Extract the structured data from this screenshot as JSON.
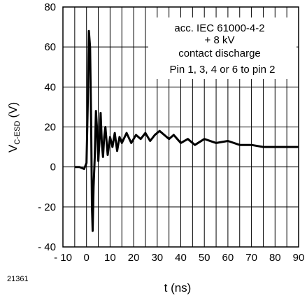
{
  "figure_id": "21361",
  "chart_data": {
    "type": "line",
    "xlabel": "t (ns)",
    "ylabel_main": "V",
    "ylabel_sub": "C-ESD",
    "ylabel_unit": "(V)",
    "xlim": [
      -10,
      90
    ],
    "ylim": [
      -40,
      80
    ],
    "x_ticks": [
      -10,
      0,
      10,
      20,
      30,
      40,
      50,
      60,
      70,
      80,
      90
    ],
    "x_tick_labels": [
      "- 10",
      "0",
      "10",
      "20",
      "30",
      "40",
      "50",
      "60",
      "70",
      "80",
      "90"
    ],
    "y_ticks": [
      -40,
      -20,
      0,
      20,
      40,
      60,
      80
    ],
    "y_tick_labels": [
      "- 40",
      "- 20",
      "0",
      "20",
      "40",
      "60",
      "80"
    ],
    "grid": true,
    "annotation": [
      "acc. IEC 61000-4-2",
      "+ 8 kV",
      "contact discharge",
      "Pin 1, 3, 4 or 6 to pin 2"
    ],
    "series": [
      {
        "x": [
          -5,
          -3,
          -1,
          0,
          0.5,
          1,
          1.5,
          2,
          2.3,
          2.6,
          3,
          3.5,
          4,
          4.5,
          5,
          5.5,
          6,
          6.5,
          7,
          7.5,
          8,
          9,
          10,
          11,
          12,
          13,
          14,
          15,
          17,
          19,
          21,
          23,
          25,
          27,
          29,
          31,
          33,
          35,
          37,
          40,
          43,
          46,
          50,
          55,
          60,
          65,
          70,
          75,
          80,
          85,
          90
        ],
        "y": [
          0,
          0,
          -1,
          2,
          30,
          68,
          60,
          20,
          -20,
          -32,
          -10,
          5,
          28,
          18,
          3,
          13,
          27,
          12,
          5,
          15,
          20,
          6,
          15,
          10,
          17,
          8,
          15,
          12,
          17,
          12,
          16,
          14,
          17,
          13,
          16,
          18,
          16,
          14,
          16,
          12,
          14,
          11,
          14,
          12,
          13,
          11,
          11,
          10,
          10,
          10,
          10
        ]
      }
    ]
  }
}
